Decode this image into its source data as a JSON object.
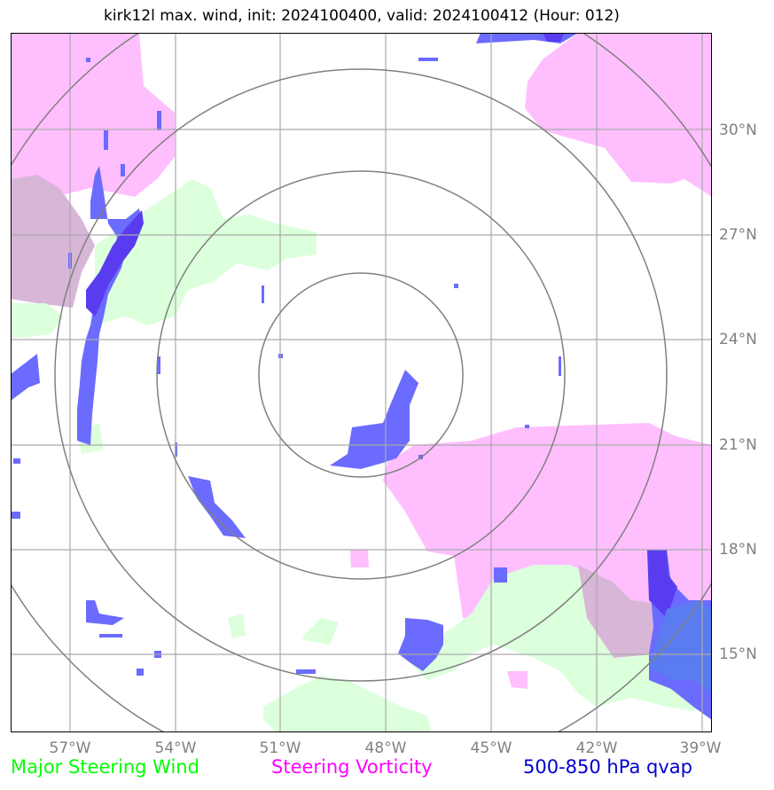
{
  "title": "kirk12l max. wind, init: 2024100400, valid: 2024100412 (Hour: 012)",
  "lon_labels": [
    "57°W",
    "54°W",
    "51°W",
    "48°W",
    "45°W",
    "42°W",
    "39°W"
  ],
  "lat_labels": [
    "30°N",
    "27°N",
    "24°N",
    "21°N",
    "18°N",
    "15°N"
  ],
  "legend": {
    "wind": "Major Steering Wind",
    "vorticity": "Steering Vorticity",
    "qvap": "500-850 hPa qvap"
  },
  "colors": {
    "wind_label": "#00ff00",
    "vorticity_label": "#ff00ff",
    "qvap_label": "#0000cc",
    "wind_fill": "#dcffdc",
    "vorticity_fill": "#ffbfff",
    "qvap_fill": "#6b6bff",
    "grid": "#aaaaaa",
    "range_rings": "#808080",
    "tick_labels": "#808080"
  },
  "map": {
    "lon_range": [
      "58.7°W",
      "38.8°W"
    ],
    "lat_range": [
      "12.8°N",
      "32.7°N"
    ],
    "storm_center": [
      "48.7°W",
      "22.9°N"
    ],
    "range_rings": 4
  }
}
